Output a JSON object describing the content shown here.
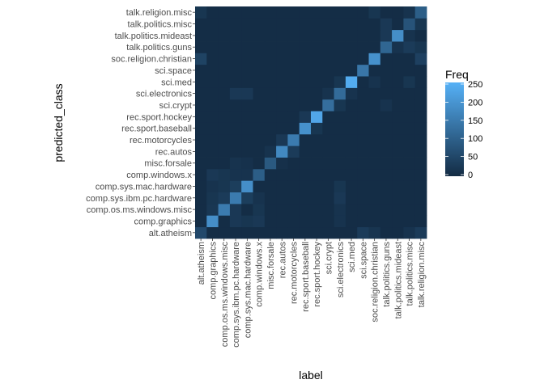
{
  "chart_data": {
    "type": "heatmap",
    "xlabel": "label",
    "ylabel": "predicted_class",
    "legend": {
      "title": "Freq",
      "ticks": [
        0,
        50,
        100,
        150,
        200,
        250
      ],
      "range": [
        0,
        250
      ],
      "placement": "right"
    },
    "categories": [
      "alt.atheism",
      "comp.graphics",
      "comp.os.ms.windows.misc",
      "comp.sys.ibm.pc.hardware",
      "comp.sys.mac.hardware",
      "comp.windows.x",
      "misc.forsale",
      "rec.autos",
      "rec.motorcycles",
      "rec.sport.baseball",
      "rec.sport.hockey",
      "sci.crypt",
      "sci.electronics",
      "sci.med",
      "sci.space",
      "soc.religion.christian",
      "talk.politics.guns",
      "talk.politics.mideast",
      "talk.politics.misc",
      "talk.religion.misc"
    ],
    "diagonal": [
      55,
      185,
      150,
      150,
      185,
      95,
      85,
      175,
      150,
      190,
      230,
      125,
      120,
      240,
      140,
      190,
      110,
      185,
      75,
      95
    ],
    "off_diagonal": [
      {
        "pred": 0,
        "label": 14,
        "freq": 30
      },
      {
        "pred": 0,
        "label": 15,
        "freq": 18
      },
      {
        "pred": 0,
        "label": 18,
        "freq": 15
      },
      {
        "pred": 0,
        "label": 19,
        "freq": 30
      },
      {
        "pred": 1,
        "label": 3,
        "freq": 25
      },
      {
        "pred": 1,
        "label": 4,
        "freq": 20
      },
      {
        "pred": 1,
        "label": 5,
        "freq": 25
      },
      {
        "pred": 1,
        "label": 12,
        "freq": 15
      },
      {
        "pred": 2,
        "label": 1,
        "freq": 22
      },
      {
        "pred": 2,
        "label": 3,
        "freq": 25
      },
      {
        "pred": 2,
        "label": 5,
        "freq": 20
      },
      {
        "pred": 2,
        "label": 12,
        "freq": 15
      },
      {
        "pred": 3,
        "label": 1,
        "freq": 20
      },
      {
        "pred": 3,
        "label": 2,
        "freq": 30
      },
      {
        "pred": 3,
        "label": 4,
        "freq": 35
      },
      {
        "pred": 3,
        "label": 5,
        "freq": 15
      },
      {
        "pred": 3,
        "label": 12,
        "freq": 25
      },
      {
        "pred": 4,
        "label": 1,
        "freq": 15
      },
      {
        "pred": 4,
        "label": 2,
        "freq": 20
      },
      {
        "pred": 4,
        "label": 3,
        "freq": 35
      },
      {
        "pred": 4,
        "label": 12,
        "freq": 20
      },
      {
        "pred": 5,
        "label": 1,
        "freq": 25
      },
      {
        "pred": 5,
        "label": 2,
        "freq": 20
      },
      {
        "pred": 5,
        "label": 3,
        "freq": 15
      },
      {
        "pred": 5,
        "label": 4,
        "freq": 15
      },
      {
        "pred": 6,
        "label": 3,
        "freq": 15
      },
      {
        "pred": 6,
        "label": 4,
        "freq": 12
      },
      {
        "pred": 6,
        "label": 7,
        "freq": 10
      },
      {
        "pred": 7,
        "label": 8,
        "freq": 30
      },
      {
        "pred": 7,
        "label": 6,
        "freq": 15
      },
      {
        "pred": 8,
        "label": 7,
        "freq": 25
      },
      {
        "pred": 9,
        "label": 10,
        "freq": 20
      },
      {
        "pred": 10,
        "label": 9,
        "freq": 25
      },
      {
        "pred": 11,
        "label": 12,
        "freq": 20
      },
      {
        "pred": 11,
        "label": 16,
        "freq": 15
      },
      {
        "pred": 12,
        "label": 3,
        "freq": 25
      },
      {
        "pred": 12,
        "label": 4,
        "freq": 25
      },
      {
        "pred": 12,
        "label": 11,
        "freq": 15
      },
      {
        "pred": 12,
        "label": 13,
        "freq": 15
      },
      {
        "pred": 13,
        "label": 12,
        "freq": 20
      },
      {
        "pred": 13,
        "label": 15,
        "freq": 15
      },
      {
        "pred": 13,
        "label": 18,
        "freq": 20
      },
      {
        "pred": 15,
        "label": 0,
        "freq": 45
      },
      {
        "pred": 15,
        "label": 19,
        "freq": 40
      },
      {
        "pred": 16,
        "label": 17,
        "freq": 15
      },
      {
        "pred": 16,
        "label": 18,
        "freq": 30
      },
      {
        "pred": 16,
        "label": 19,
        "freq": 20
      },
      {
        "pred": 17,
        "label": 16,
        "freq": 25
      },
      {
        "pred": 17,
        "label": 18,
        "freq": 15
      },
      {
        "pred": 18,
        "label": 16,
        "freq": 25
      },
      {
        "pred": 18,
        "label": 19,
        "freq": 20
      },
      {
        "pred": 19,
        "label": 0,
        "freq": 20
      },
      {
        "pred": 19,
        "label": 15,
        "freq": 20
      },
      {
        "pred": 19,
        "label": 18,
        "freq": 15
      }
    ],
    "base_freq": 4,
    "colors": {
      "low": "#132b43",
      "high": "#56b1f7",
      "background": "#ebebeb"
    }
  }
}
